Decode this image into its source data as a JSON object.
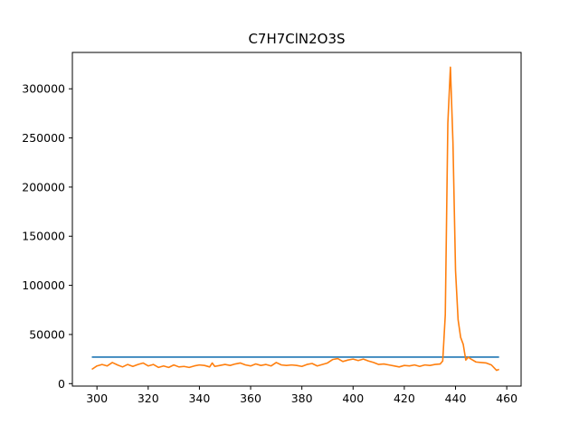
{
  "chart_data": {
    "type": "line",
    "title": "C7H7ClN2O3S",
    "xlabel": "",
    "ylabel": "",
    "xlim": [
      290.4,
      465.6
    ],
    "ylim": [
      -2500,
      337000
    ],
    "xticks": [
      300,
      320,
      340,
      360,
      380,
      400,
      420,
      440,
      460
    ],
    "yticks": [
      0,
      50000,
      100000,
      150000,
      200000,
      250000,
      300000
    ],
    "grid": false,
    "legend": "none",
    "series": [
      {
        "color": "#1f77b4",
        "x": [
          298,
          457
        ],
        "y": [
          27000,
          27000
        ]
      },
      {
        "color": "#ff7f0e",
        "x": [
          298,
          300,
          302,
          304,
          306,
          308,
          310,
          312,
          314,
          316,
          318,
          320,
          322,
          324,
          326,
          328,
          330,
          332,
          334,
          336,
          338,
          340,
          342,
          344,
          345,
          346,
          348,
          350,
          352,
          354,
          356,
          358,
          360,
          362,
          364,
          366,
          368,
          370,
          372,
          374,
          376,
          378,
          380,
          382,
          384,
          386,
          388,
          390,
          392,
          394,
          396,
          398,
          400,
          402,
          404,
          406,
          408,
          410,
          412,
          414,
          416,
          418,
          420,
          422,
          424,
          426,
          428,
          430,
          432,
          434,
          435,
          436,
          437,
          438,
          439,
          440,
          441,
          442,
          443,
          444,
          445,
          446,
          448,
          450,
          452,
          454,
          456,
          457
        ],
        "y": [
          14500,
          18000,
          19500,
          18000,
          21500,
          19000,
          17000,
          19500,
          17500,
          19500,
          21000,
          18000,
          19500,
          16500,
          18000,
          16500,
          19000,
          17000,
          17500,
          16500,
          18000,
          19000,
          18500,
          17000,
          21000,
          17500,
          18500,
          19500,
          18500,
          20000,
          21000,
          19000,
          18000,
          20000,
          18500,
          19500,
          18000,
          21500,
          19000,
          18500,
          19000,
          18500,
          17500,
          19500,
          20500,
          18000,
          19500,
          21000,
          24500,
          25500,
          22500,
          24000,
          25000,
          23500,
          25000,
          23000,
          21500,
          19500,
          20000,
          19000,
          18000,
          17000,
          18500,
          18000,
          19000,
          17500,
          19000,
          18500,
          19500,
          20000,
          23000,
          70000,
          265000,
          322000,
          245000,
          115000,
          65000,
          47000,
          40000,
          24000,
          27000,
          25000,
          22000,
          21500,
          21000,
          19000,
          13500,
          14500
        ]
      }
    ]
  }
}
